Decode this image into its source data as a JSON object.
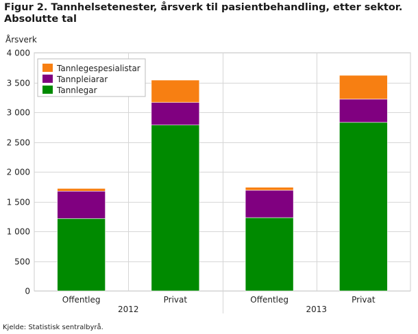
{
  "chart_data": {
    "type": "bar",
    "stacked": true,
    "title_line1": "Figur 2. Tannhelsetenester, årsverk til pasientbehandling, etter sektor.",
    "title_line2": "Absolutte tal",
    "ylabel": "Årsverk",
    "ylim": [
      0,
      4000
    ],
    "yticks": [
      0,
      500,
      1000,
      1500,
      2000,
      2500,
      3000,
      3500,
      4000
    ],
    "ytick_labels": [
      "0",
      "500",
      "1 000",
      "1 500",
      "2 000",
      "2 500",
      "3 000",
      "3 500",
      "4 000"
    ],
    "grid": true,
    "legend_position": "top-left",
    "groups": [
      "2012",
      "2013"
    ],
    "categories": [
      "Offentleg",
      "Privat",
      "Offentleg",
      "Privat"
    ],
    "category_group": [
      0,
      0,
      1,
      1
    ],
    "series": [
      {
        "name": "Tannlegar",
        "color": "#008a00",
        "values": [
          1215,
          2785,
          1230,
          2830
        ]
      },
      {
        "name": "Tannpleiarar",
        "color": "#800080",
        "values": [
          460,
          380,
          460,
          390
        ]
      },
      {
        "name": "Tannlegespesialistar",
        "color": "#f77f12",
        "values": [
          45,
          375,
          50,
          400
        ]
      }
    ],
    "legend_order": [
      "Tannlegespesialistar",
      "Tannpleiarar",
      "Tannlegar"
    ],
    "source": "Kjelde: Statistisk sentralbyrå."
  }
}
